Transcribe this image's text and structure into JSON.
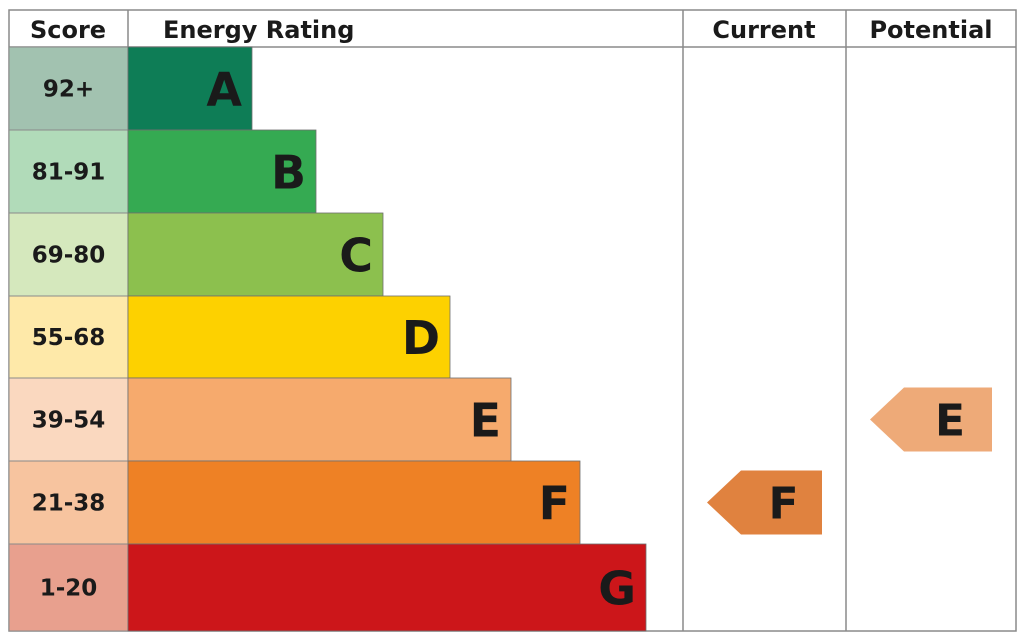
{
  "chart_data": {
    "type": "table",
    "headers": {
      "score": "Score",
      "rating": "Energy Rating",
      "current": "Current",
      "potential": "Potential"
    },
    "bands": [
      {
        "letter": "A",
        "range": "92+",
        "color": "#0e7d56",
        "score_color": "#a2c2b0"
      },
      {
        "letter": "B",
        "range": "81-91",
        "color": "#35aa52",
        "score_color": "#b1dbb9"
      },
      {
        "letter": "C",
        "range": "69-80",
        "color": "#8cc04e",
        "score_color": "#d5e8bd"
      },
      {
        "letter": "D",
        "range": "55-68",
        "color": "#fdd100",
        "score_color": "#fee9a9"
      },
      {
        "letter": "E",
        "range": "39-54",
        "color": "#f6aa6d",
        "score_color": "#fad8bf"
      },
      {
        "letter": "F",
        "range": "21-38",
        "color": "#ee8125",
        "score_color": "#f7c49f"
      },
      {
        "letter": "G",
        "range": "1-20",
        "color": "#cc161a",
        "score_color": "#e8a08e"
      }
    ],
    "current": {
      "letter": "F",
      "color": "#e0823f"
    },
    "potential": {
      "letter": "E",
      "color": "#eeaa78"
    }
  }
}
